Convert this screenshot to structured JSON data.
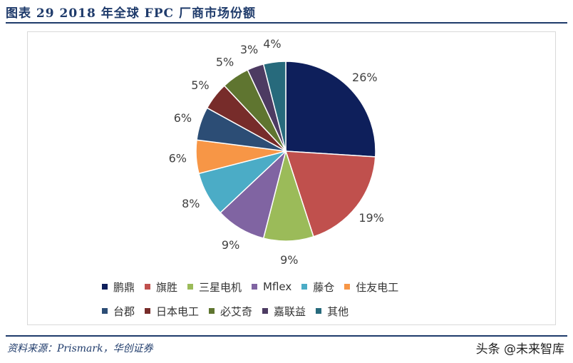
{
  "title": "图表 29   2018 年全球 FPC 厂商市场份额",
  "source": "资料来源：Prismark，华创证券",
  "watermark": "头条 @未来智库",
  "chart_data": {
    "type": "pie",
    "title": "",
    "start": "top, clockwise",
    "legend_position": "bottom",
    "categories": [
      "鹏鼎",
      "旗胜",
      "三星电机",
      "Mflex",
      "藤仓",
      "住友电工",
      "台郡",
      "日本电工",
      "必艾奇",
      "嘉联益",
      "其他"
    ],
    "values": [
      26,
      19,
      9,
      9,
      8,
      6,
      6,
      5,
      5,
      3,
      4
    ],
    "labels": [
      "26%",
      "19%",
      "9%",
      "9%",
      "8%",
      "6%",
      "6%",
      "5%",
      "5%",
      "3%",
      "4%"
    ],
    "colors": [
      "#0E1F5B",
      "#C0504D",
      "#9BBB59",
      "#8064A2",
      "#4BACC6",
      "#F79646",
      "#2C4D75",
      "#772C2A",
      "#5F7530",
      "#4D3B62",
      "#276A7C"
    ]
  }
}
